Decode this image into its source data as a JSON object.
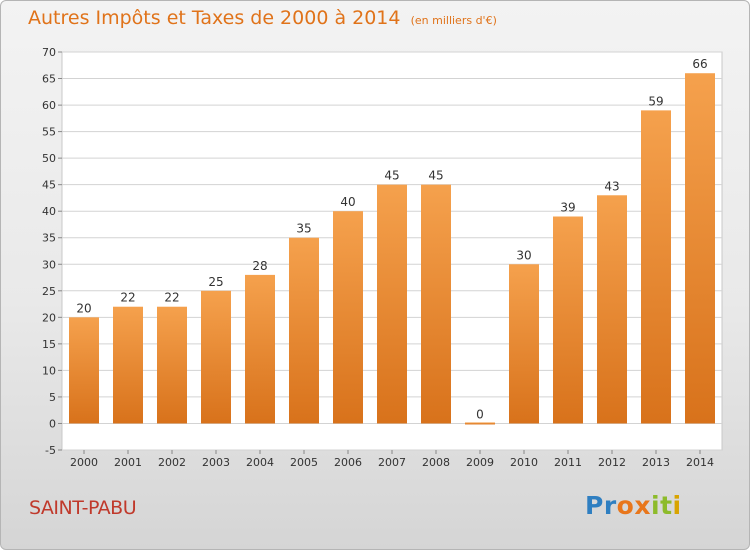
{
  "title": "Autres Impôts et Taxes de 2000 à 2014",
  "subtitle": "(en milliers d'€)",
  "place": "SAINT-PABU",
  "brand": {
    "letters": [
      "P",
      "r",
      "o",
      "x",
      "i",
      "t",
      "i"
    ],
    "colors": [
      "#2f7fc1",
      "#2f7fc1",
      "#e8761b",
      "#e8761b",
      "#8dbb2b",
      "#8dbb2b",
      "#d9a400"
    ]
  },
  "colors": {
    "bar_light": "#f5a14d",
    "bar_dark": "#d8721b",
    "title": "#e0731a",
    "place": "#c0392b"
  },
  "chart_data": {
    "type": "bar",
    "categories": [
      "2000",
      "2001",
      "2002",
      "2003",
      "2004",
      "2005",
      "2006",
      "2007",
      "2008",
      "2009",
      "2010",
      "2011",
      "2012",
      "2013",
      "2014"
    ],
    "values": [
      20,
      22,
      22,
      25,
      28,
      35,
      40,
      45,
      45,
      0,
      30,
      39,
      43,
      59,
      66
    ],
    "ylim": [
      -5,
      70
    ],
    "yticks": [
      -5,
      0,
      5,
      10,
      15,
      20,
      25,
      30,
      35,
      40,
      45,
      50,
      55,
      60,
      65,
      70
    ],
    "grid": "y"
  }
}
